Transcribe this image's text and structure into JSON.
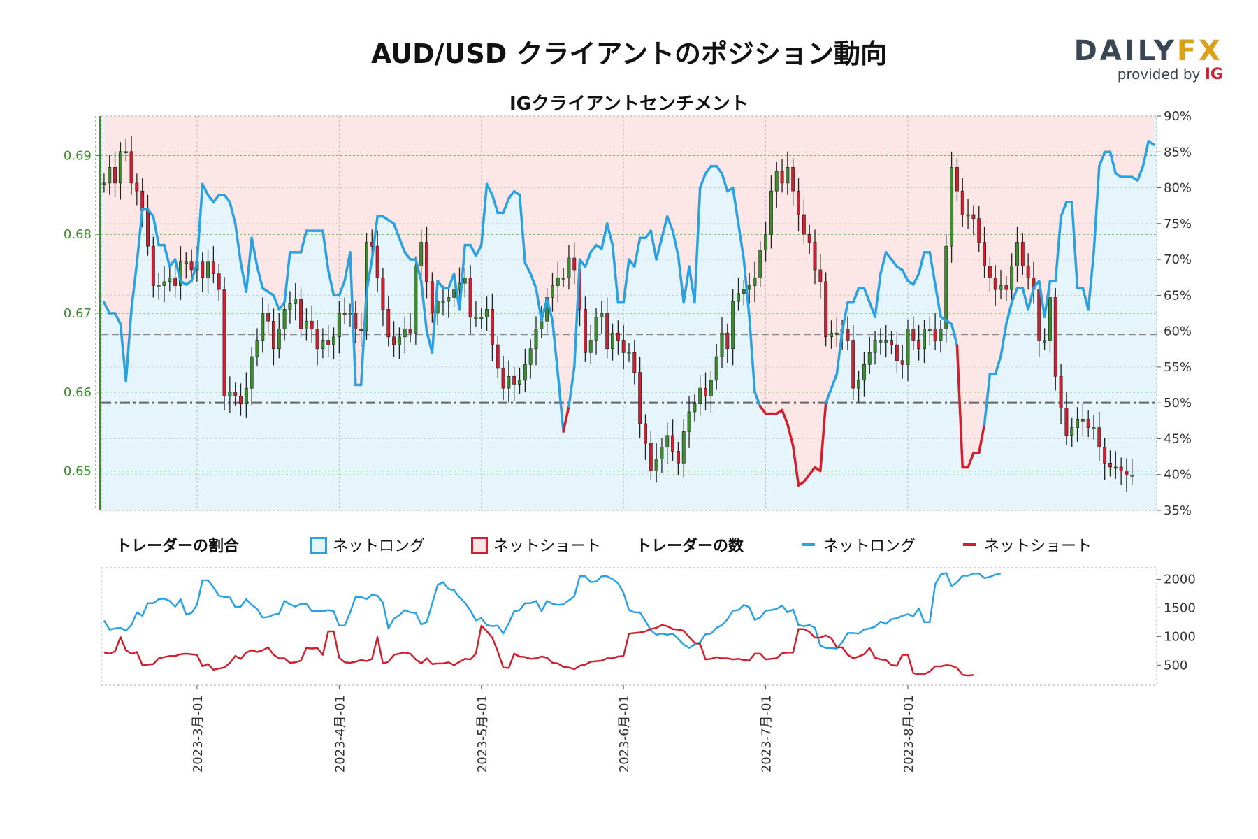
{
  "header": {
    "title": "AUD/USD クライアントのポジション動向",
    "subtitle": "IGクライアントセンチメント",
    "logo_main": "DAILY",
    "logo_fx": "FX",
    "logo_provided": "provided by",
    "logo_ig": "IG"
  },
  "legend": {
    "ratio_label": "トレーダーの割合",
    "ratio_long": "ネットロング",
    "ratio_short": "ネットショート",
    "count_label": "トレーダーの数",
    "count_long": "ネットロング",
    "count_short": "ネットショート"
  },
  "colors": {
    "long": "#2aa1e0",
    "short": "#d0202f",
    "long_fill": "#e6f4fc",
    "short_fill": "#fce6e6",
    "candle_up": "#3d8c2f",
    "candle_down": "#d0202f",
    "price_axis": "#3d8c2f"
  },
  "chart_data": [
    {
      "type": "candlestick",
      "name": "price",
      "ylim": [
        0.645,
        0.695
      ],
      "yticks": [
        "0.65",
        "0.66",
        "0.67",
        "0.68",
        "0.69"
      ],
      "ytick_values": [
        0.65,
        0.66,
        0.67,
        0.68,
        0.69
      ],
      "last_price_level": 0.6673,
      "closes": [
        0.6865,
        0.6885,
        0.6865,
        0.6905,
        0.6905,
        0.6865,
        0.6855,
        0.683,
        0.6785,
        0.6735,
        0.6735,
        0.674,
        0.6745,
        0.6735,
        0.6765,
        0.6765,
        0.6755,
        0.6765,
        0.6745,
        0.6765,
        0.675,
        0.673,
        0.6595,
        0.66,
        0.6595,
        0.6585,
        0.6605,
        0.6645,
        0.6665,
        0.67,
        0.669,
        0.6655,
        0.668,
        0.6705,
        0.6712,
        0.6718,
        0.668,
        0.669,
        0.668,
        0.6655,
        0.6665,
        0.666,
        0.667,
        0.67,
        0.6698,
        0.67,
        0.668,
        0.6678,
        0.679,
        0.6785,
        0.6745,
        0.6705,
        0.667,
        0.666,
        0.667,
        0.668,
        0.6675,
        0.676,
        0.679,
        0.674,
        0.67,
        0.6715,
        0.6715,
        0.672,
        0.673,
        0.6738,
        0.6745,
        0.6695,
        0.6695,
        0.6695,
        0.6705,
        0.666,
        0.663,
        0.6605,
        0.662,
        0.661,
        0.6615,
        0.6635,
        0.6655,
        0.668,
        0.669,
        0.672,
        0.6735,
        0.6745,
        0.6745,
        0.677,
        0.6755,
        0.6705,
        0.665,
        0.6665,
        0.6695,
        0.67,
        0.6655,
        0.6675,
        0.6665,
        0.665,
        0.665,
        0.6625,
        0.656,
        0.6535,
        0.65,
        0.6515,
        0.653,
        0.6545,
        0.6525,
        0.651,
        0.655,
        0.6575,
        0.6585,
        0.6605,
        0.6595,
        0.6615,
        0.6645,
        0.6675,
        0.6655,
        0.6715,
        0.6725,
        0.673,
        0.6735,
        0.6745,
        0.678,
        0.68,
        0.6855,
        0.688,
        0.6865,
        0.6885,
        0.6855,
        0.6825,
        0.68,
        0.679,
        0.6755,
        0.674,
        0.667,
        0.6675,
        0.6675,
        0.668,
        0.6665,
        0.6605,
        0.6615,
        0.6635,
        0.665,
        0.6665,
        0.6665,
        0.6665,
        0.666,
        0.664,
        0.6635,
        0.668,
        0.6665,
        0.6655,
        0.668,
        0.668,
        0.6665,
        0.668,
        0.6785,
        0.6885,
        0.6855,
        0.6825,
        0.6825,
        0.682,
        0.679,
        0.676,
        0.6745,
        0.673,
        0.6735,
        0.673,
        0.676,
        0.679,
        0.676,
        0.6745,
        0.673,
        0.6665,
        0.6665,
        0.672,
        0.662,
        0.658,
        0.6545,
        0.6555,
        0.6565,
        0.6565,
        0.6555,
        0.6555,
        0.653,
        0.651,
        0.6505,
        0.6505,
        0.65,
        0.6495,
        0.6495
      ]
    },
    {
      "type": "area",
      "name": "long_percentage",
      "ylim": [
        35,
        90
      ],
      "yticks": [
        "90%",
        "85%",
        "80%",
        "75%",
        "70%",
        "65%",
        "60%",
        "55%",
        "50%",
        "45%",
        "40%",
        "35%"
      ],
      "ytick_values": [
        90,
        85,
        80,
        75,
        70,
        65,
        60,
        55,
        50,
        45,
        40,
        35
      ],
      "reference_line": 50,
      "values": [
        64,
        62.5,
        62.5,
        61,
        53,
        63,
        69.5,
        77,
        77,
        76,
        72,
        72,
        69,
        70,
        67,
        66.5,
        67,
        69.5,
        80.5,
        79,
        78,
        79,
        79,
        78,
        75,
        69.5,
        65.5,
        73,
        69,
        66,
        65.5,
        65,
        63,
        64,
        71,
        71,
        71,
        74,
        74,
        74,
        74,
        68.5,
        65,
        65,
        67,
        71,
        52.5,
        52.5,
        65.5,
        70,
        76,
        76,
        75.5,
        75,
        73,
        71,
        70,
        70,
        67,
        60,
        57,
        67,
        66,
        66,
        68,
        63,
        72,
        72,
        70.5,
        72,
        80.5,
        79,
        76.5,
        76.5,
        78.5,
        79.5,
        79,
        69.5,
        68,
        66,
        61.5,
        64.5,
        61.5,
        54,
        46,
        49.5,
        55,
        70,
        69,
        71,
        72,
        71.5,
        75,
        72,
        64,
        64,
        70,
        69,
        73,
        73,
        74,
        70,
        73,
        76,
        74,
        70.5,
        64,
        69,
        64,
        80,
        82,
        83,
        83,
        82,
        79.5,
        80,
        75,
        70,
        62,
        51.5,
        49.5,
        48.5,
        48.5,
        48.5,
        49,
        47,
        44,
        38.5,
        39,
        40,
        41,
        40.5,
        50,
        52,
        54,
        60,
        64,
        64,
        66,
        66,
        64,
        62,
        68,
        71,
        70,
        69,
        68.5,
        67,
        66.5,
        68,
        71,
        71,
        66.5,
        62,
        61.5,
        61,
        58,
        41,
        41,
        43,
        43,
        47,
        54,
        54,
        56.5,
        61,
        64,
        66,
        66,
        63,
        66,
        67,
        62,
        67,
        67,
        76,
        78,
        78,
        66,
        66,
        63,
        71,
        83,
        85,
        85,
        82,
        81.5,
        81.5,
        81.5,
        81,
        83,
        86.5,
        86
      ]
    },
    {
      "type": "line",
      "name": "trader_count",
      "ylim": [
        150,
        2200
      ],
      "yticks": [
        "2000",
        "1500",
        "1000",
        "500"
      ],
      "ytick_values": [
        2000,
        1500,
        1000,
        500
      ],
      "x_labels": [
        "2023-3月-01",
        "2023-4月-01",
        "2023-5月-01",
        "2023-6月-01",
        "2023-7月-01",
        "2023-8月-01"
      ],
      "x_label_index": [
        17,
        43,
        69,
        95,
        121,
        147
      ],
      "series": [
        {
          "name": "ネットロング",
          "values": [
            1280,
            1120,
            1140,
            1150,
            1100,
            1200,
            1420,
            1360,
            1580,
            1580,
            1650,
            1660,
            1620,
            1520,
            1650,
            1380,
            1410,
            1550,
            1980,
            1980,
            1860,
            1710,
            1690,
            1680,
            1510,
            1520,
            1650,
            1550,
            1480,
            1330,
            1340,
            1380,
            1400,
            1620,
            1560,
            1520,
            1570,
            1570,
            1440,
            1440,
            1440,
            1460,
            1440,
            1190,
            1190,
            1420,
            1690,
            1690,
            1650,
            1730,
            1710,
            1590,
            1140,
            1310,
            1370,
            1460,
            1420,
            1410,
            1210,
            1250,
            1570,
            1900,
            1950,
            1830,
            1810,
            1680,
            1590,
            1450,
            1280,
            1320,
            1200,
            1180,
            1190,
            1050,
            1230,
            1440,
            1460,
            1580,
            1580,
            1620,
            1440,
            1620,
            1570,
            1550,
            1560,
            1630,
            1700,
            2050,
            2050,
            1950,
            1960,
            2050,
            2050,
            2000,
            1930,
            1760,
            1460,
            1420,
            1420,
            1270,
            1110,
            1030,
            1050,
            1030,
            1050,
            960,
            860,
            800,
            860,
            900,
            1040,
            1050,
            1150,
            1200,
            1300,
            1450,
            1460,
            1550,
            1510,
            1290,
            1330,
            1450,
            1460,
            1480,
            1540,
            1420,
            1470,
            1200,
            1180,
            1200,
            1150,
            840,
            800,
            800,
            790,
            900,
            1060,
            1060,
            1050,
            1120,
            1140,
            1170,
            1260,
            1220,
            1300,
            1320,
            1360,
            1390,
            1350,
            1490,
            1250,
            1250,
            1910,
            2080,
            2110,
            1880,
            1950,
            2060,
            2060,
            2100,
            2100,
            2020,
            2040,
            2080,
            2100
          ]
        },
        {
          "name": "ネットショート",
          "values": [
            720,
            700,
            740,
            990,
            760,
            700,
            730,
            500,
            510,
            520,
            620,
            640,
            660,
            660,
            690,
            700,
            690,
            680,
            480,
            520,
            420,
            440,
            460,
            540,
            660,
            610,
            720,
            760,
            730,
            760,
            810,
            680,
            620,
            620,
            540,
            550,
            580,
            800,
            790,
            800,
            680,
            1090,
            1090,
            630,
            550,
            540,
            560,
            590,
            570,
            610,
            990,
            530,
            560,
            680,
            700,
            720,
            700,
            600,
            530,
            620,
            520,
            530,
            530,
            550,
            500,
            560,
            610,
            600,
            700,
            1190,
            1090,
            980,
            740,
            460,
            450,
            700,
            650,
            640,
            610,
            620,
            650,
            630,
            540,
            530,
            470,
            460,
            430,
            490,
            510,
            560,
            570,
            580,
            620,
            620,
            650,
            660,
            1050,
            1060,
            1070,
            1090,
            1130,
            1150,
            1200,
            1180,
            1130,
            1120,
            1100,
            990,
            890,
            870,
            600,
            610,
            640,
            620,
            620,
            600,
            610,
            590,
            580,
            700,
            700,
            600,
            610,
            620,
            710,
            720,
            720,
            1130,
            1130,
            1080,
            980,
            980,
            1020,
            970,
            810,
            810,
            680,
            620,
            650,
            690,
            800,
            630,
            600,
            590,
            500,
            490,
            680,
            680,
            360,
            340,
            340,
            390,
            480,
            480,
            500,
            490,
            450,
            330,
            320,
            330
          ]
        }
      ]
    }
  ]
}
